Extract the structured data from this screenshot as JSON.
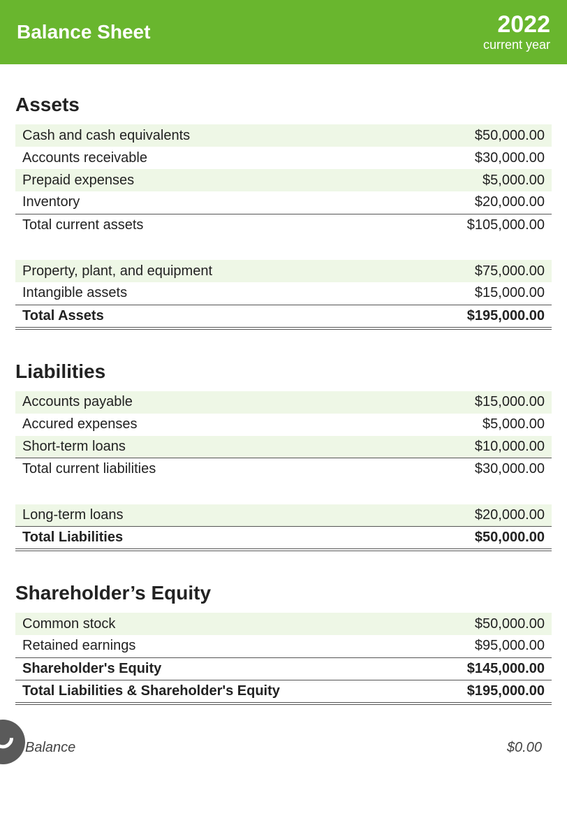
{
  "colors": {
    "header_bg": "#69b62e",
    "header_text": "#ffffff",
    "stripe_bg": "#eef7e6",
    "border": "#555555",
    "body_text": "#222222",
    "balance_text": "#444444",
    "fab_bg": "#5a5a5a"
  },
  "header": {
    "title": "Balance Sheet",
    "year": "2022",
    "subtitle": "current year"
  },
  "sections": {
    "assets": {
      "title": "Assets",
      "rows": [
        {
          "label": "Cash and cash equivalents",
          "value": "$50,000.00"
        },
        {
          "label": "Accounts receivable",
          "value": "$30,000.00"
        },
        {
          "label": "Prepaid expenses",
          "value": "$5,000.00"
        },
        {
          "label": "Inventory",
          "value": "$20,000.00"
        }
      ],
      "subtotal": {
        "label": "Total current assets",
        "value": "$105,000.00"
      },
      "rows2": [
        {
          "label": "Property, plant, and equipment",
          "value": "$75,000.00"
        },
        {
          "label": "Intangible assets",
          "value": "$15,000.00"
        }
      ],
      "grand": {
        "label": "Total Assets",
        "value": "$195,000.00"
      }
    },
    "liabilities": {
      "title": "Liabilities",
      "rows": [
        {
          "label": "Accounts payable",
          "value": "$15,000.00"
        },
        {
          "label": "Accured expenses",
          "value": "$5,000.00"
        },
        {
          "label": "Short-term loans",
          "value": "$10,000.00"
        }
      ],
      "subtotal": {
        "label": "Total current liabilities",
        "value": "$30,000.00"
      },
      "rows2": [
        {
          "label": "Long-term loans",
          "value": "$20,000.00"
        }
      ],
      "grand": {
        "label": "Total Liabilities",
        "value": "$50,000.00"
      }
    },
    "equity": {
      "title": "Shareholder’s Equity",
      "rows": [
        {
          "label": "Common stock",
          "value": "$50,000.00"
        },
        {
          "label": "Retained earnings",
          "value": "$95,000.00"
        }
      ],
      "sub1": {
        "label": "Shareholder's Equity",
        "value": "$145,000.00"
      },
      "sub2": {
        "label": "Total Liabilities & Shareholder's Equity",
        "value": "$195,000.00"
      }
    }
  },
  "balance": {
    "label": "Balance",
    "value": "$0.00"
  }
}
